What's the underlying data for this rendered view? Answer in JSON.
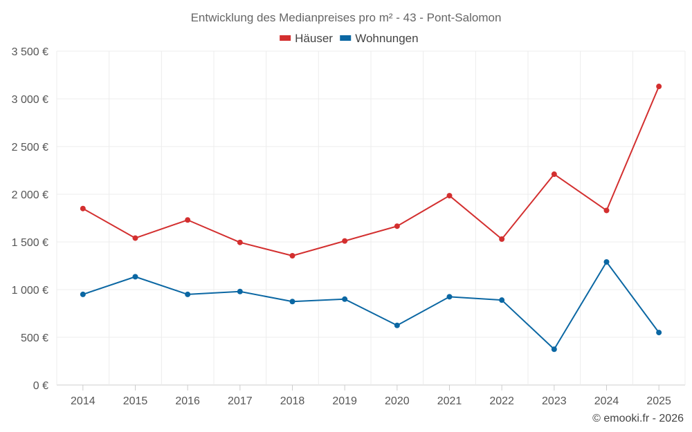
{
  "chart_data": {
    "type": "line",
    "title": "Entwicklung des Medianpreises pro m² - 43 - Pont-Salomon",
    "categories": [
      "2014",
      "2015",
      "2016",
      "2017",
      "2018",
      "2019",
      "2020",
      "2021",
      "2022",
      "2023",
      "2024",
      "2025"
    ],
    "series": [
      {
        "name": "Häuser",
        "color": "#d32f2f",
        "values": [
          1850,
          1540,
          1730,
          1495,
          1355,
          1510,
          1665,
          1985,
          1530,
          2210,
          1830,
          3130
        ]
      },
      {
        "name": "Wohnungen",
        "color": "#0b67a3",
        "values": [
          950,
          1135,
          950,
          980,
          875,
          900,
          625,
          925,
          890,
          375,
          1290,
          550
        ]
      }
    ],
    "ylim": [
      0,
      3500
    ],
    "yticks": [
      0,
      500,
      1000,
      1500,
      2000,
      2500,
      3000,
      3500
    ],
    "ytick_labels": [
      "0 €",
      "500 €",
      "1 000 €",
      "1 500 €",
      "2 000 €",
      "2 500 €",
      "3 000 €",
      "3 500 €"
    ],
    "grid": true,
    "legend_position": "top-center",
    "xlabel": "",
    "ylabel": ""
  },
  "credit": "© emooki.fr - 2026"
}
